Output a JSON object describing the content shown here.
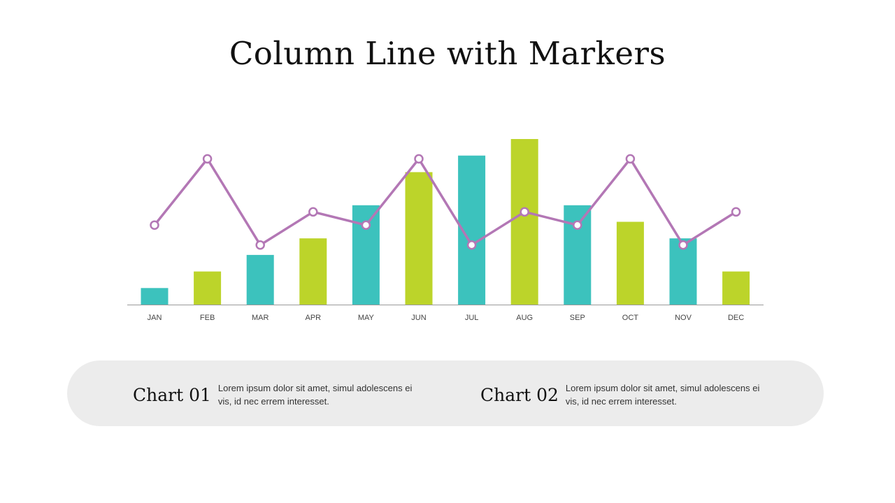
{
  "title": "Column Line with Markers",
  "colors": {
    "teal": "#3cc2bd",
    "lime": "#bcd42a",
    "line": "#b377b5",
    "axis": "#9a9a9a",
    "pill": "#ececec"
  },
  "chart_data": {
    "type": "bar",
    "categories": [
      "JAN",
      "FEB",
      "MAR",
      "APR",
      "MAY",
      "JUN",
      "JUL",
      "AUG",
      "SEP",
      "OCT",
      "NOV",
      "DEC"
    ],
    "series": [
      {
        "type": "bar",
        "values": [
          1,
          2,
          3,
          4,
          6,
          8,
          9,
          10,
          6,
          5,
          4,
          2
        ],
        "colors": [
          "#3cc2bd",
          "#bcd42a",
          "#3cc2bd",
          "#bcd42a",
          "#3cc2bd",
          "#bcd42a",
          "#3cc2bd",
          "#bcd42a",
          "#3cc2bd",
          "#bcd42a",
          "#3cc2bd",
          "#bcd42a"
        ]
      },
      {
        "type": "line",
        "marker": "circle",
        "values": [
          4.8,
          8.8,
          3.6,
          5.6,
          4.8,
          8.8,
          3.6,
          5.6,
          4.8,
          8.8,
          3.6,
          5.6
        ],
        "color": "#b377b5"
      }
    ],
    "ylim": [
      0,
      10
    ],
    "grid": false,
    "legend": "none"
  },
  "cards": [
    {
      "title": "Chart 01",
      "text": "Lorem ipsum dolor sit amet, simul adolescens ei vis, id nec errem interesset."
    },
    {
      "title": "Chart 02",
      "text": "Lorem ipsum dolor sit amet, simul adolescens ei vis, id nec errem interesset."
    }
  ]
}
